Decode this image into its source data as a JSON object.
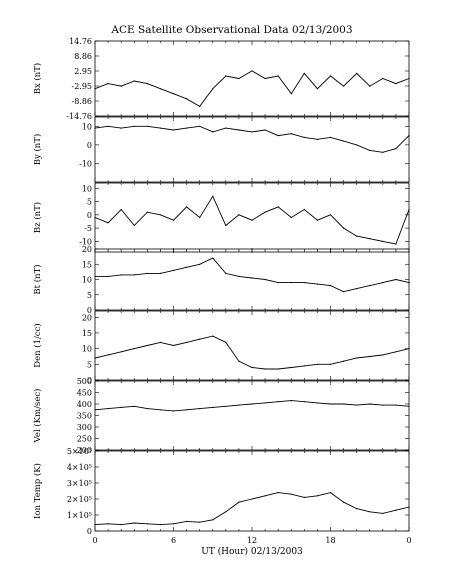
{
  "title": "ACE Satellite Observational Data   02/13/2003",
  "xlabel": "UT (Hour)   02/13/2003",
  "x_ticks": [
    "0",
    "6",
    "12",
    "18",
    "0"
  ],
  "chart_data": [
    {
      "type": "line",
      "ylabel": "Bx (nT)",
      "ylim": [
        -14.76,
        14.76
      ],
      "y_ticks": [
        "14.76",
        "8.86",
        "2.95",
        "-2.95",
        "-8.86",
        "-14.76"
      ],
      "y_tick_values": [
        14.76,
        8.86,
        2.95,
        -2.95,
        -8.86,
        -14.76
      ],
      "series": [
        {
          "x": [
            0,
            1,
            2,
            3,
            4,
            5,
            6,
            7,
            8,
            9,
            10,
            11,
            12,
            13,
            14,
            15,
            16,
            17,
            18,
            19,
            20,
            21,
            22,
            23,
            24
          ],
          "y": [
            -4,
            -2,
            -3,
            -1,
            -2,
            -4,
            -6,
            -8,
            -11,
            -4,
            1,
            0,
            3,
            0,
            1,
            -6,
            2,
            -4,
            1,
            -3,
            2,
            -3,
            0,
            -2,
            0
          ]
        }
      ]
    },
    {
      "type": "line",
      "ylabel": "By (nT)",
      "ylim": [
        -20,
        15
      ],
      "y_ticks": [
        "10",
        "0",
        "-10"
      ],
      "y_tick_values": [
        10,
        0,
        -10
      ],
      "series": [
        {
          "x": [
            0,
            1,
            2,
            3,
            4,
            5,
            6,
            7,
            8,
            9,
            10,
            11,
            12,
            13,
            14,
            15,
            16,
            17,
            18,
            19,
            20,
            21,
            22,
            23,
            24
          ],
          "y": [
            9,
            10,
            9,
            10,
            10,
            9,
            8,
            9,
            10,
            7,
            9,
            8,
            7,
            8,
            5,
            6,
            4,
            3,
            4,
            2,
            0,
            -3,
            -4,
            -2,
            5
          ]
        }
      ]
    },
    {
      "type": "line",
      "ylabel": "Bz (nT)",
      "ylim": [
        -14,
        12
      ],
      "y_ticks": [
        "10",
        "5",
        "0",
        "-5",
        "-10"
      ],
      "y_tick_values": [
        10,
        5,
        0,
        -5,
        -10
      ],
      "series": [
        {
          "x": [
            0,
            1,
            2,
            3,
            4,
            5,
            6,
            7,
            8,
            9,
            10,
            11,
            12,
            13,
            14,
            15,
            16,
            17,
            18,
            19,
            20,
            21,
            22,
            23,
            24
          ],
          "y": [
            -1,
            -3,
            2,
            -4,
            1,
            0,
            -2,
            3,
            -1,
            7,
            -4,
            0,
            -2,
            1,
            3,
            -1,
            2,
            -2,
            0,
            -5,
            -8,
            -9,
            -10,
            -11,
            2
          ]
        }
      ]
    },
    {
      "type": "line",
      "ylabel": "Bt (nT)",
      "ylim": [
        0,
        20
      ],
      "y_ticks": [
        "20",
        "15",
        "10",
        "5",
        "0"
      ],
      "y_tick_values": [
        20,
        15,
        10,
        5,
        0
      ],
      "series": [
        {
          "x": [
            0,
            1,
            2,
            3,
            4,
            5,
            6,
            7,
            8,
            9,
            10,
            11,
            12,
            13,
            14,
            15,
            16,
            17,
            18,
            19,
            20,
            21,
            22,
            23,
            24
          ],
          "y": [
            11,
            11,
            11.5,
            11.5,
            12,
            12,
            13,
            14,
            15,
            17,
            12,
            11,
            10.5,
            10,
            9,
            9,
            9,
            8.5,
            8,
            6,
            7,
            8,
            9,
            10,
            9
          ]
        }
      ]
    },
    {
      "type": "line",
      "ylabel": "Den (1/cc)",
      "ylim": [
        0,
        22
      ],
      "y_ticks": [
        "20",
        "15",
        "10",
        "5",
        "0"
      ],
      "y_tick_values": [
        20,
        15,
        10,
        5,
        0
      ],
      "series": [
        {
          "x": [
            0,
            1,
            2,
            3,
            4,
            5,
            6,
            7,
            8,
            9,
            10,
            11,
            12,
            13,
            14,
            15,
            16,
            17,
            18,
            19,
            20,
            21,
            22,
            23,
            24
          ],
          "y": [
            7,
            8,
            9,
            10,
            11,
            12,
            11,
            12,
            13,
            14,
            12,
            6,
            4,
            3.5,
            3.5,
            4,
            4.5,
            5,
            5,
            6,
            7,
            7.5,
            8,
            9,
            10
          ]
        }
      ]
    },
    {
      "type": "line",
      "ylabel": "Vel (Km/sec)",
      "ylim": [
        200,
        500
      ],
      "y_ticks": [
        "500",
        "450",
        "400",
        "350",
        "300",
        "250",
        "200"
      ],
      "y_tick_values": [
        500,
        450,
        400,
        350,
        300,
        250,
        200
      ],
      "series": [
        {
          "x": [
            0,
            1,
            2,
            3,
            4,
            5,
            6,
            7,
            8,
            9,
            10,
            11,
            12,
            13,
            14,
            15,
            16,
            17,
            18,
            19,
            20,
            21,
            22,
            23,
            24
          ],
          "y": [
            375,
            380,
            385,
            390,
            380,
            375,
            370,
            375,
            380,
            385,
            390,
            395,
            400,
            405,
            410,
            415,
            410,
            405,
            400,
            400,
            395,
            400,
            395,
            395,
            390
          ]
        }
      ]
    },
    {
      "type": "line",
      "ylabel": "Ion Temp (K)",
      "ylim": [
        0,
        500000
      ],
      "y_ticks": [
        "5×10⁵",
        "4×10⁵",
        "3×10⁵",
        "2×10⁵",
        "1×10⁵",
        "0"
      ],
      "y_tick_values": [
        500000,
        400000,
        300000,
        200000,
        100000,
        0
      ],
      "series": [
        {
          "x": [
            0,
            1,
            2,
            3,
            4,
            5,
            6,
            7,
            8,
            9,
            10,
            11,
            12,
            13,
            14,
            15,
            16,
            17,
            18,
            19,
            20,
            21,
            22,
            23,
            24
          ],
          "y": [
            40000,
            45000,
            40000,
            50000,
            45000,
            40000,
            45000,
            60000,
            55000,
            70000,
            120000,
            180000,
            200000,
            220000,
            240000,
            230000,
            210000,
            220000,
            240000,
            180000,
            140000,
            120000,
            110000,
            130000,
            150000
          ]
        }
      ]
    }
  ]
}
